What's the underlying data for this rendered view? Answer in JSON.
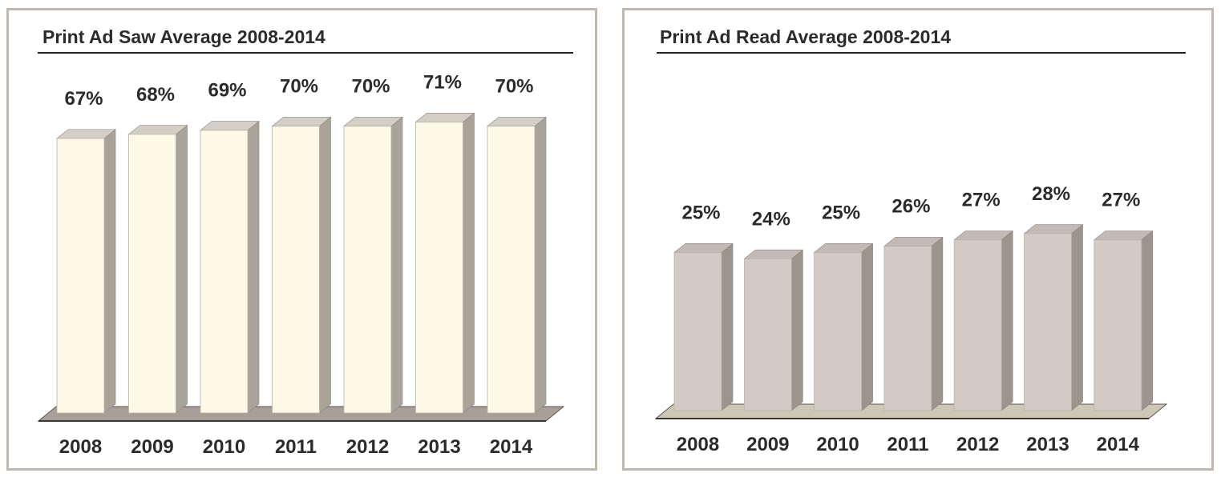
{
  "chart_data": [
    {
      "type": "bar",
      "title": "Print Ad Saw Average 2008-2014",
      "categories": [
        "2008",
        "2009",
        "2010",
        "2011",
        "2012",
        "2013",
        "2014"
      ],
      "values": [
        67,
        68,
        69,
        70,
        70,
        71,
        70
      ],
      "value_labels": [
        "67%",
        "68%",
        "69%",
        "70%",
        "70%",
        "71%",
        "70%"
      ],
      "unit": "%",
      "ylim": [
        0,
        100
      ],
      "style": "3d",
      "grid": false,
      "legend": "none",
      "colors": {
        "front": "#fdf9e6",
        "side": "#aaa39a",
        "top": "#d4cfc6",
        "floor": "#a79f98"
      }
    },
    {
      "type": "bar",
      "title": "Print Ad Read Average 2008-2014",
      "categories": [
        "2008",
        "2009",
        "2010",
        "2011",
        "2012",
        "2013",
        "2014"
      ],
      "values": [
        25,
        24,
        25,
        26,
        27,
        28,
        27
      ],
      "value_labels": [
        "25%",
        "24%",
        "25%",
        "26%",
        "27%",
        "28%",
        "27%"
      ],
      "unit": "%",
      "ylim": [
        0,
        100
      ],
      "style": "3d",
      "grid": false,
      "legend": "none",
      "colors": {
        "front": "#d3cac6",
        "side": "#9c958e",
        "top": "#c2bbb5",
        "floor": "#cdc8b6"
      }
    }
  ]
}
